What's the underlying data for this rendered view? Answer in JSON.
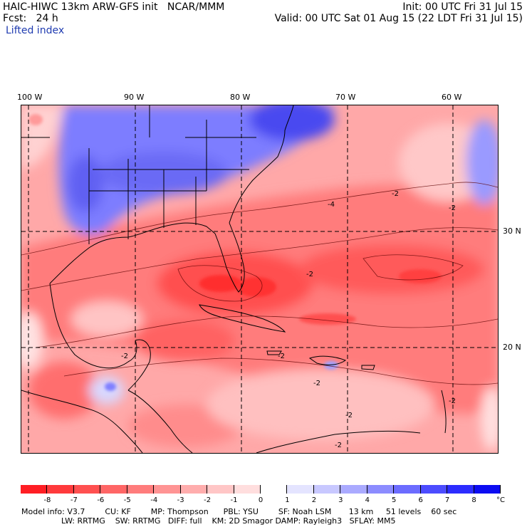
{
  "header": {
    "title_left": "HAIC-HIWC 13km ARW-GFS init   NCAR/MMM",
    "fcst": "Fcst:   24 h",
    "field": "Lifted index",
    "init": "Init: 00 UTC Fri 31 Jul 15",
    "valid": "Valid: 00 UTC Sat 01 Aug 15 (22 LDT Fri 31 Jul 15)"
  },
  "axes": {
    "lon_labels": [
      "100 W",
      "90 W",
      "80 W",
      "70 W",
      "60 W"
    ],
    "lat_labels": [
      "30 N",
      "20 N"
    ]
  },
  "contour_labels": [
    "-2",
    "-2",
    "-2",
    "-2",
    "-2",
    "-2",
    "-2",
    "-4",
    "-2",
    "-2"
  ],
  "colorbar": {
    "labels": [
      "-8",
      "-7",
      "-6",
      "-5",
      "-4",
      "-3",
      "-2",
      "-1",
      "0",
      "1",
      "2",
      "3",
      "4",
      "5",
      "6",
      "7",
      "8"
    ],
    "unit": "°C",
    "colors": [
      "#ff1e24",
      "#ff3a3c",
      "#ff5050",
      "#ff6666",
      "#ff7c7c",
      "#ff9494",
      "#ffadad",
      "#ffc6c6",
      "#ffdede",
      "#ffffff",
      "#e4e4ff",
      "#c8c8ff",
      "#aaaaff",
      "#8c8cff",
      "#6c6cff",
      "#4c4cff",
      "#2c2cff",
      "#0c0cf2"
    ]
  },
  "footer": {
    "line1": "Model info: V3.7        CU: KF        MP: Thompson      PBL: YSU        SF: Noah LSM       13 km     51 levels    60 sec",
    "line2": "                LW: RRTMG    SW: RRTMG   DIFF: full    KM: 2D Smagor DAMP: Rayleigh3   SFLAY: MM5"
  }
}
